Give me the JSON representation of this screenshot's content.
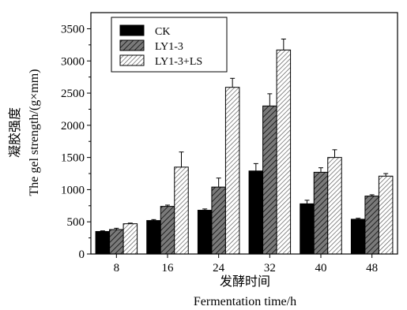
{
  "chart_data": {
    "type": "bar",
    "title": "",
    "xlabel": "发酵时间",
    "xlabel_en": "Fermentation time/h",
    "ylabel": "凝胶强度",
    "ylabel_en": "The gel strength/(g×mm)",
    "categories": [
      "8",
      "16",
      "24",
      "32",
      "40",
      "48"
    ],
    "ylim": [
      0,
      3700
    ],
    "yticks": [
      0,
      500,
      1000,
      1500,
      2000,
      2500,
      3000,
      3500
    ],
    "legend_position": "top-left",
    "grid": false,
    "series": [
      {
        "name": "CK",
        "values": [
          350,
          520,
          680,
          1290,
          780,
          540
        ],
        "errors": [
          10,
          15,
          20,
          115,
          55,
          15
        ],
        "fill": "solid-black",
        "color": "#000000"
      },
      {
        "name": "LY1-3",
        "values": [
          380,
          740,
          1040,
          2300,
          1270,
          900
        ],
        "errors": [
          20,
          20,
          140,
          190,
          70,
          20
        ],
        "fill": "dark-hatch",
        "color": "#555555"
      },
      {
        "name": "LY1-3+LS",
        "values": [
          470,
          1350,
          2590,
          3170,
          1500,
          1210
        ],
        "errors": [
          10,
          235,
          140,
          170,
          120,
          40
        ],
        "fill": "light-hatch",
        "color": "#bbbbbb"
      }
    ]
  }
}
